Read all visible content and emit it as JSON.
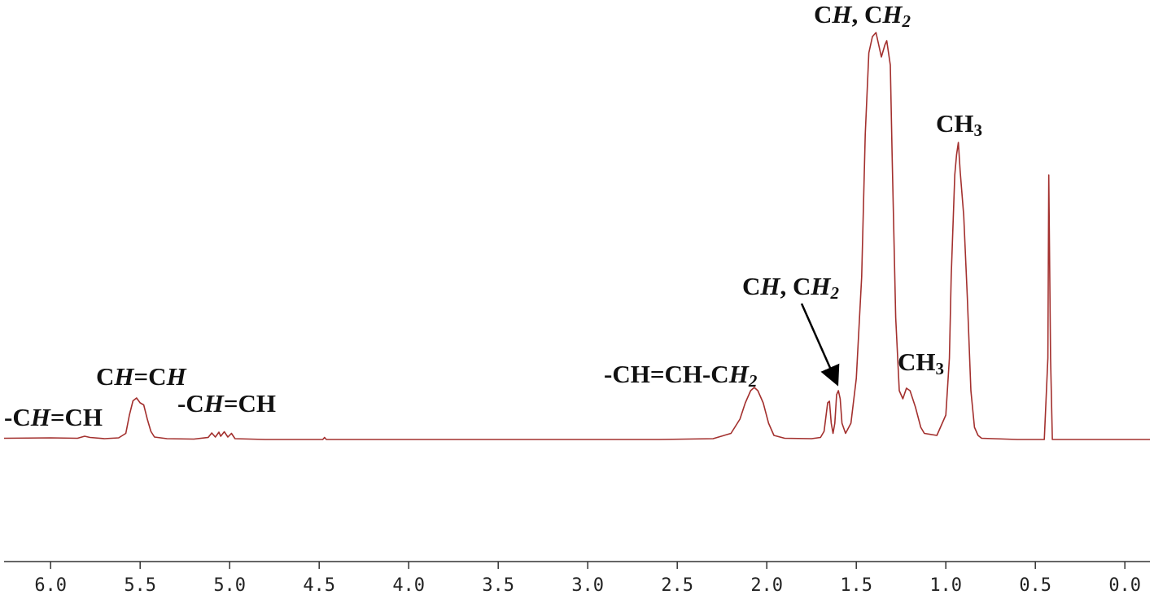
{
  "chart_data": {
    "type": "line",
    "color": "#a3302e",
    "xlim": [
      6.26,
      -0.14
    ],
    "ylim": [
      -30,
      108
    ],
    "xticks": [
      {
        "value": 6.0,
        "label": "6.0"
      },
      {
        "value": 5.5,
        "label": "5.5"
      },
      {
        "value": 5.0,
        "label": "5.0"
      },
      {
        "value": 4.5,
        "label": "4.5"
      },
      {
        "value": 4.0,
        "label": "4.0"
      },
      {
        "value": 3.5,
        "label": "3.5"
      },
      {
        "value": 3.0,
        "label": "3.0"
      },
      {
        "value": 2.5,
        "label": "2.5"
      },
      {
        "value": 2.0,
        "label": "2.0"
      },
      {
        "value": 1.5,
        "label": "1.5"
      },
      {
        "value": 1.0,
        "label": "1.0"
      },
      {
        "value": 0.5,
        "label": "0.5"
      },
      {
        "value": 0.0,
        "label": "0.0"
      }
    ],
    "x": [
      6.26,
      6.0,
      5.85,
      5.81,
      5.78,
      5.7,
      5.62,
      5.58,
      5.56,
      5.54,
      5.52,
      5.5,
      5.48,
      5.46,
      5.44,
      5.42,
      5.35,
      5.2,
      5.12,
      5.1,
      5.08,
      5.06,
      5.05,
      5.03,
      5.01,
      4.99,
      4.97,
      4.8,
      4.48,
      4.47,
      4.46,
      3.6,
      2.6,
      2.3,
      2.2,
      2.15,
      2.12,
      2.09,
      2.07,
      2.05,
      2.02,
      1.99,
      1.96,
      1.9,
      1.75,
      1.7,
      1.68,
      1.66,
      1.65,
      1.64,
      1.63,
      1.62,
      1.61,
      1.6,
      1.59,
      1.58,
      1.56,
      1.53,
      1.5,
      1.47,
      1.45,
      1.43,
      1.41,
      1.39,
      1.38,
      1.36,
      1.34,
      1.33,
      1.31,
      1.3,
      1.28,
      1.26,
      1.24,
      1.22,
      1.2,
      1.17,
      1.14,
      1.12,
      1.05,
      1.0,
      0.98,
      0.97,
      0.95,
      0.94,
      0.93,
      0.92,
      0.9,
      0.88,
      0.86,
      0.84,
      0.82,
      0.8,
      0.6,
      0.45,
      0.43,
      0.425,
      0.415,
      0.405,
      0.2,
      -0.14
    ],
    "values": [
      0.3,
      0.4,
      0.3,
      0.8,
      0.5,
      0.2,
      0.4,
      1.5,
      6,
      9.5,
      10.2,
      9,
      8.5,
      5,
      2,
      0.6,
      0.2,
      0.1,
      0.5,
      1.6,
      0.6,
      1.8,
      0.8,
      1.9,
      0.6,
      1.5,
      0.2,
      0,
      0,
      0.5,
      0,
      0,
      0,
      0.2,
      1.5,
      5,
      9,
      12,
      12.8,
      12,
      9,
      4,
      1,
      0.3,
      0.2,
      0.5,
      2,
      9,
      9.4,
      4,
      1.5,
      4,
      11,
      12,
      10,
      4,
      1.5,
      4,
      15,
      40,
      75,
      95,
      99,
      100,
      98,
      94,
      97,
      98,
      92,
      70,
      30,
      12,
      10,
      12.6,
      12,
      8,
      3,
      1.5,
      1,
      6,
      20,
      40,
      65,
      70,
      73,
      66,
      55,
      35,
      12,
      3,
      1,
      0.3,
      0,
      0,
      20,
      65,
      20,
      0,
      0,
      0
    ],
    "annotations": [
      {
        "runs": [
          {
            "text": "-C"
          },
          {
            "text": "H",
            "italic": true
          },
          {
            "text": "=CH"
          }
        ]
      },
      {
        "runs": [
          {
            "text": "C"
          },
          {
            "text": "H",
            "italic": true
          },
          {
            "text": "=C"
          },
          {
            "text": "H",
            "italic": true
          }
        ]
      },
      {
        "runs": [
          {
            "text": "-C"
          },
          {
            "text": "H",
            "italic": true
          },
          {
            "text": "=CH"
          }
        ]
      },
      {
        "runs": [
          {
            "text": "-CH=CH-C"
          },
          {
            "text": "H",
            "italic": true
          },
          {
            "text": "2",
            "italic": true,
            "sub": true
          }
        ]
      },
      {
        "runs": [
          {
            "text": "C"
          },
          {
            "text": "H",
            "italic": true
          },
          {
            "text": ", C"
          },
          {
            "text": "H",
            "italic": true
          },
          {
            "text": "2",
            "italic": true,
            "sub": true
          }
        ]
      },
      {
        "runs": [
          {
            "text": "C"
          },
          {
            "text": "H",
            "italic": true
          },
          {
            "text": ", C"
          },
          {
            "text": "H",
            "italic": true
          },
          {
            "text": "2",
            "italic": true,
            "sub": true
          }
        ]
      },
      {
        "runs": [
          {
            "text": "CH"
          },
          {
            "text": "3",
            "sub": true
          }
        ]
      },
      {
        "runs": [
          {
            "text": "CH"
          },
          {
            "text": "3",
            "sub": true
          }
        ]
      }
    ]
  }
}
